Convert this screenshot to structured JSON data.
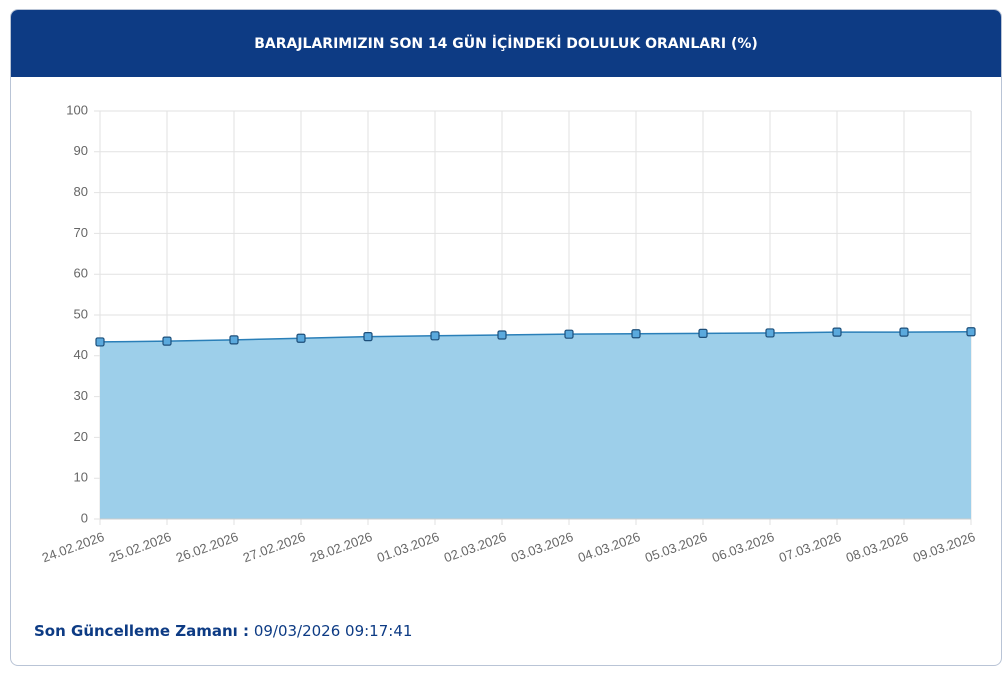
{
  "chart_data": {
    "type": "area",
    "title": "BARAJLARIMIZIN SON 14 GÜN İÇİNDEKİ DOLULUK ORANLARI (%)",
    "categories": [
      "24.02.2026",
      "25.02.2026",
      "26.02.2026",
      "27.02.2026",
      "28.02.2026",
      "01.03.2026",
      "02.03.2026",
      "03.03.2026",
      "04.03.2026",
      "05.03.2026",
      "06.03.2026",
      "07.03.2026",
      "08.03.2026",
      "09.03.2026"
    ],
    "values": [
      43.4,
      43.6,
      43.9,
      44.3,
      44.7,
      44.9,
      45.1,
      45.3,
      45.4,
      45.5,
      45.6,
      45.8,
      45.8,
      45.9
    ],
    "color": "#2a7fb8",
    "fill": "#9dcfea",
    "ylim": [
      0,
      100
    ],
    "yticks": [
      0,
      10,
      20,
      30,
      40,
      50,
      60,
      70,
      80,
      90,
      100
    ],
    "grid": true
  },
  "footer": {
    "label": "Son Güncelleme Zamanı :",
    "value": "09/03/2026 09:17:41"
  }
}
